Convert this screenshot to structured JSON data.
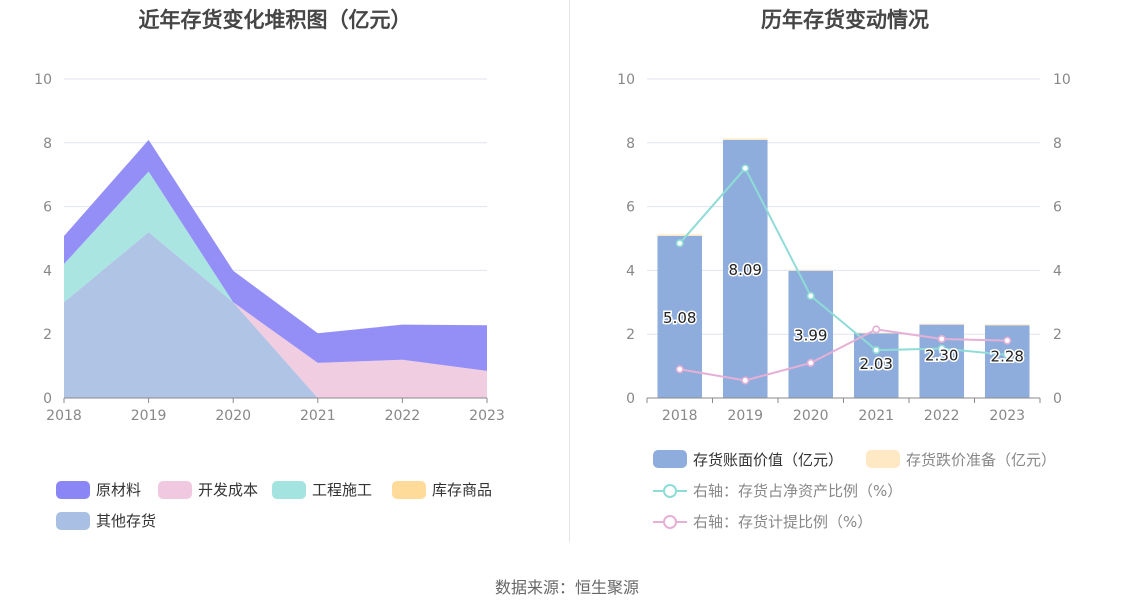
{
  "left_title": "近年存货变化堆积图（亿元）",
  "right_title": "历年存货变动情况",
  "source": "数据来源：恒生聚源",
  "colors": {
    "raw_materials": "#8a86f5",
    "dev_cost": "#f0c9e0",
    "construction": "#a3e3e0",
    "goods": "#ffdb9a",
    "other": "#a9bfe3",
    "bar": "#8eaddc",
    "bar_reserve": "#ffe9c4",
    "line_ratio": "#8fdcd6",
    "line_provision": "#e6b0d6"
  },
  "chart_data": [
    {
      "type": "area",
      "title": "近年存货变化堆积图（亿元）",
      "x": [
        "2018",
        "2019",
        "2020",
        "2021",
        "2022",
        "2023"
      ],
      "ylim": [
        0,
        10
      ],
      "yticks": [
        "0",
        "2",
        "4",
        "6",
        "8",
        "10"
      ],
      "stacked": true,
      "series": [
        {
          "name": "其他存货",
          "values": [
            3.0,
            5.2,
            3.0,
            0.0,
            0.0,
            0.0
          ]
        },
        {
          "name": "开发成本",
          "values": [
            0.0,
            0.0,
            0.0,
            1.1,
            1.2,
            0.85
          ]
        },
        {
          "name": "工程施工",
          "values": [
            1.2,
            1.9,
            0.0,
            0.0,
            0.0,
            0.0
          ]
        },
        {
          "name": "库存商品",
          "values": [
            0.0,
            0.0,
            0.0,
            0.0,
            0.0,
            0.0
          ]
        },
        {
          "name": "原材料",
          "values": [
            0.88,
            0.99,
            0.99,
            0.93,
            1.1,
            1.43
          ]
        }
      ],
      "legend": [
        "原材料",
        "开发成本",
        "工程施工",
        "库存商品",
        "其他存货"
      ],
      "legend_position": "bottom",
      "grid": true
    },
    {
      "type": "bar",
      "title": "历年存货变动情况",
      "categories": [
        "2018",
        "2019",
        "2020",
        "2021",
        "2022",
        "2023"
      ],
      "ylim": [
        0,
        10
      ],
      "y2lim": [
        0,
        10
      ],
      "yticks": [
        "0",
        "2",
        "4",
        "6",
        "8",
        "10"
      ],
      "y2ticks": [
        "0",
        "2",
        "4",
        "6",
        "8",
        "10"
      ],
      "series": [
        {
          "name": "存货账面价值（亿元）",
          "type": "bar",
          "axis": "left",
          "values": [
            5.08,
            8.09,
            3.99,
            2.03,
            2.3,
            2.28
          ],
          "labels": [
            "5.08",
            "8.09",
            "3.99",
            "2.03",
            "2.30",
            "2.28"
          ]
        },
        {
          "name": "存货跌价准备（亿元）",
          "type": "bar",
          "axis": "left",
          "stacked_on": 0,
          "values": [
            0.05,
            0.05,
            0.03,
            0.02,
            0.03,
            0.03
          ]
        },
        {
          "name": "右轴：存货占净资产比例（%）",
          "type": "line",
          "axis": "right",
          "values": [
            4.85,
            7.2,
            3.2,
            1.5,
            1.55,
            1.35
          ]
        },
        {
          "name": "右轴：存货计提比例（%）",
          "type": "line",
          "axis": "right",
          "values": [
            0.9,
            0.55,
            1.1,
            2.15,
            1.85,
            1.8
          ]
        }
      ],
      "legend_position": "bottom",
      "grid": true
    }
  ]
}
